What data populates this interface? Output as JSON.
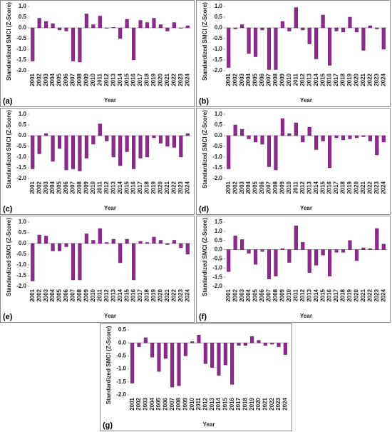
{
  "chart_data": [
    {
      "type": "bar",
      "panel": "(a)",
      "y_label": "Standardized SMCI (Z-Score)",
      "x_label": "Year",
      "color": "#8e2a8e",
      "categories": [
        "2001",
        "2002",
        "2003",
        "2004",
        "2005",
        "2006",
        "2007",
        "2008",
        "2009",
        "2010",
        "2011",
        "2012",
        "2013",
        "2014",
        "2015",
        "2016",
        "2017",
        "2018",
        "2019",
        "2020",
        "2021",
        "2022",
        "2023",
        "2024"
      ],
      "values": [
        -1.55,
        0.45,
        0.3,
        0.2,
        -0.1,
        -0.15,
        -1.55,
        -1.6,
        0.65,
        0.15,
        0.55,
        -0.02,
        0.02,
        -0.5,
        0.4,
        -1.5,
        0.35,
        0.25,
        0.45,
        0.15,
        -0.15,
        0.25,
        -0.02,
        0.1
      ],
      "ylim": [
        -2,
        1
      ],
      "yticks": [
        {
          "value": -2,
          "label": "-2.0"
        },
        -1.5,
        {
          "value": -1,
          "label": "-1.0"
        },
        -0.5,
        {
          "value": 0,
          "label": "0.0"
        },
        0.5,
        {
          "value": 1,
          "label": "1.0"
        }
      ]
    },
    {
      "type": "bar",
      "panel": "(b)",
      "y_label": "Standardized SMCI (Z-Score)",
      "x_label": "Year",
      "color": "#8e2a8e",
      "categories": [
        "2001",
        "2002",
        "2003",
        "2004",
        "2005",
        "2006",
        "2007",
        "2008",
        "2009",
        "2010",
        "2011",
        "2012",
        "2013",
        "2014",
        "2015",
        "2016",
        "2017",
        "2018",
        "2019",
        "2020",
        "2021",
        "2022",
        "2023",
        "2024"
      ],
      "values": [
        -1.85,
        -0.05,
        0.15,
        -1.2,
        -1.35,
        -0.1,
        -1.95,
        -1.95,
        0.3,
        -0.15,
        0.95,
        -0.1,
        -0.75,
        -1.45,
        0.6,
        -1.75,
        -0.15,
        -0.2,
        0.5,
        -0.2,
        -1.05,
        0.1,
        -0.05,
        -1.0
      ],
      "ylim": [
        -2,
        1
      ],
      "yticks": [
        {
          "value": -2,
          "label": "-2.0"
        },
        -1.5,
        {
          "value": -1,
          "label": "-1.0"
        },
        -0.5,
        {
          "value": 0,
          "label": "0.0"
        },
        0.5,
        {
          "value": 1,
          "label": "1.0"
        }
      ]
    },
    {
      "type": "bar",
      "panel": "(c)",
      "y_label": "Standardized SMCI (Z-Score)",
      "x_label": "Year",
      "color": "#8e2a8e",
      "categories": [
        "2001",
        "2002",
        "2003",
        "2004",
        "2005",
        "2006",
        "2007",
        "2008",
        "2009",
        "2010",
        "2011",
        "2012",
        "2013",
        "2014",
        "2015",
        "2016",
        "2017",
        "2018",
        "2019",
        "2020",
        "2021",
        "2022",
        "2023",
        "2024"
      ],
      "values": [
        -1.55,
        -0.85,
        0.1,
        -1.2,
        -0.6,
        -1.6,
        -1.55,
        -1.65,
        -1.05,
        -0.4,
        0.55,
        -0.25,
        -1.0,
        -1.4,
        -0.75,
        -1.55,
        -1.05,
        -1.0,
        -0.1,
        -0.35,
        -0.5,
        -0.55,
        -1.0,
        0.1
      ],
      "ylim": [
        -2,
        1
      ],
      "yticks": [
        {
          "value": -2,
          "label": "-2.0"
        },
        -1.5,
        {
          "value": -1,
          "label": "-1.0"
        },
        -0.5,
        {
          "value": 0,
          "label": "0.0"
        },
        0.5,
        {
          "value": 1,
          "label": "1.0"
        }
      ]
    },
    {
      "type": "bar",
      "panel": "(d)",
      "y_label": "Standardized SMCI (Z-Score)",
      "x_label": "Year",
      "color": "#8e2a8e",
      "categories": [
        "2001",
        "2002",
        "2003",
        "2004",
        "2005",
        "2006",
        "2007",
        "2008",
        "2009",
        "2010",
        "2011",
        "2012",
        "2013",
        "2014",
        "2015",
        "2016",
        "2017",
        "2018",
        "2019",
        "2020",
        "2021",
        "2022",
        "2023",
        "2024"
      ],
      "values": [
        -1.55,
        0.5,
        0.3,
        -0.15,
        -0.3,
        -0.4,
        -1.45,
        -1.6,
        0.8,
        0.1,
        0.6,
        -0.3,
        0.4,
        -0.65,
        -0.25,
        -1.5,
        -0.1,
        -0.2,
        -0.15,
        -0.1,
        -0.05,
        -0.25,
        -0.9,
        -0.3
      ],
      "ylim": [
        -2,
        1
      ],
      "yticks": [
        {
          "value": -2,
          "label": "-2.0"
        },
        -1.5,
        {
          "value": -1,
          "label": "-1.0"
        },
        -0.5,
        {
          "value": 0,
          "label": "0.0"
        },
        0.5,
        {
          "value": 1,
          "label": "1.0"
        }
      ]
    },
    {
      "type": "bar",
      "panel": "(e)",
      "y_label": "Standardized SMCI (Z-Score)",
      "x_label": "Year",
      "color": "#8e2a8e",
      "categories": [
        "2001",
        "2002",
        "2003",
        "2004",
        "2005",
        "2006",
        "2007",
        "2008",
        "2009",
        "2010",
        "2011",
        "2012",
        "2013",
        "2014",
        "2015",
        "2016",
        "2017",
        "2018",
        "2019",
        "2020",
        "2021",
        "2022",
        "2023",
        "2024"
      ],
      "values": [
        -1.75,
        0.4,
        0.35,
        -0.35,
        -0.35,
        -0.15,
        -1.7,
        -1.7,
        0.45,
        0.15,
        0.7,
        0.05,
        0.2,
        -0.9,
        0.2,
        -1.7,
        0.1,
        0.05,
        0.3,
        0.15,
        -0.05,
        0.15,
        -0.2,
        -0.5
      ],
      "ylim": [
        -2,
        1
      ],
      "yticks": [
        {
          "value": -2,
          "label": "-2.0"
        },
        -1.5,
        {
          "value": -1,
          "label": "-1.0"
        },
        -0.5,
        {
          "value": 0,
          "label": "0.0"
        },
        0.5,
        {
          "value": 1,
          "label": "1.0"
        }
      ]
    },
    {
      "type": "bar",
      "panel": "(f)",
      "y_label": "Standardized SMCI (Z-Score)",
      "x_label": "Year",
      "color": "#8e2a8e",
      "categories": [
        "2001",
        "2002",
        "2003",
        "2004",
        "2005",
        "2006",
        "2007",
        "2008",
        "2009",
        "2010",
        "2011",
        "2012",
        "2013",
        "2014",
        "2015",
        "2016",
        "2017",
        "2018",
        "2019",
        "2020",
        "2021",
        "2022",
        "2023",
        "2024"
      ],
      "values": [
        -1.2,
        0.75,
        0.55,
        -0.2,
        -0.8,
        -0.1,
        -1.6,
        -1.45,
        0.05,
        -0.7,
        1.3,
        0.4,
        -1.25,
        -0.85,
        -0.3,
        -1.45,
        -0.15,
        -0.15,
        0.5,
        -0.6,
        0.1,
        0.05,
        1.15,
        0.3
      ],
      "ylim": [
        -2,
        1.5
      ],
      "yticks": [
        {
          "value": -2,
          "label": "-2.0"
        },
        -1.5,
        {
          "value": -1,
          "label": "-1.0"
        },
        -0.5,
        {
          "value": 0,
          "label": "0.0"
        },
        0.5,
        {
          "value": 1,
          "label": "1.0"
        },
        1.5
      ]
    },
    {
      "type": "bar",
      "panel": "(g)",
      "y_label": "Standardized SMCI (Z-Score)",
      "x_label": "Year",
      "color": "#8e2a8e",
      "categories": [
        "2001",
        "2002",
        "2003",
        "2004",
        "2005",
        "2006",
        "2007",
        "2008",
        "2009",
        "2010",
        "2011",
        "2012",
        "2013",
        "2014",
        "2015",
        "2016",
        "2017",
        "2018",
        "2019",
        "2020",
        "2021",
        "2022",
        "2023",
        "2024"
      ],
      "values": [
        -1.55,
        -0.15,
        0.2,
        -0.55,
        -1.1,
        -0.6,
        -1.7,
        -1.65,
        -0.5,
        0.05,
        0.3,
        -0.8,
        -0.95,
        -1.25,
        -0.85,
        -1.6,
        -0.1,
        -0.1,
        0.25,
        0.1,
        -0.1,
        -0.05,
        -0.15,
        -0.45
      ],
      "ylim": [
        -2,
        0.5
      ],
      "yticks": [
        {
          "value": -2,
          "label": "-2.0"
        },
        -1.5,
        {
          "value": -1,
          "label": "-1.0"
        },
        -0.5,
        {
          "value": 0,
          "label": "0.0"
        },
        0.5
      ]
    }
  ]
}
